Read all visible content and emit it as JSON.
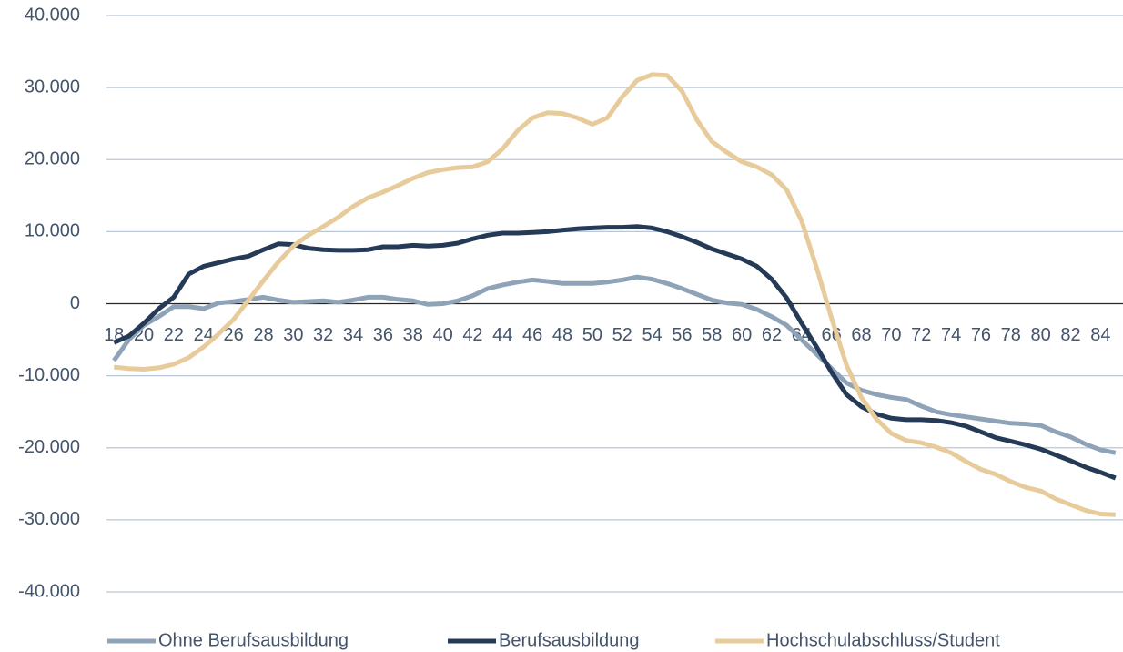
{
  "chart_data": {
    "type": "line",
    "x": [
      18,
      19,
      20,
      21,
      22,
      23,
      24,
      25,
      26,
      27,
      28,
      29,
      30,
      31,
      32,
      33,
      34,
      35,
      36,
      37,
      38,
      39,
      40,
      41,
      42,
      43,
      44,
      45,
      46,
      47,
      48,
      49,
      50,
      51,
      52,
      53,
      54,
      55,
      56,
      57,
      58,
      59,
      60,
      61,
      62,
      63,
      64,
      65,
      66,
      67,
      68,
      69,
      70,
      71,
      72,
      73,
      74,
      75,
      76,
      77,
      78,
      79,
      80,
      81,
      82,
      83,
      84,
      85
    ],
    "xlim": [
      17.5,
      85.5
    ],
    "xticks": [
      18,
      20,
      22,
      24,
      26,
      28,
      30,
      32,
      34,
      36,
      38,
      40,
      42,
      44,
      46,
      48,
      50,
      52,
      54,
      56,
      58,
      60,
      62,
      64,
      66,
      68,
      70,
      72,
      74,
      76,
      78,
      80,
      82,
      84
    ],
    "ylim": [
      -40000,
      40000
    ],
    "yticks": [
      {
        "value": -40000,
        "label": "-40.000"
      },
      {
        "value": -30000,
        "label": "-30.000"
      },
      {
        "value": -20000,
        "label": "-20.000"
      },
      {
        "value": -10000,
        "label": "-10.000"
      },
      0,
      {
        "value": 10000,
        "label": "10.000"
      },
      {
        "value": 20000,
        "label": "20.000"
      },
      {
        "value": 30000,
        "label": "30.000"
      },
      {
        "value": 40000,
        "label": "40.000"
      }
    ],
    "grid": true,
    "legend": "bottom",
    "series": [
      {
        "name": "Ohne Berufsausbildung",
        "color": "#8fa3b8",
        "values": [
          -7900,
          -5000,
          -3000,
          -1800,
          -400,
          -400,
          -700,
          100,
          300,
          600,
          900,
          500,
          200,
          300,
          400,
          200,
          500,
          900,
          900,
          600,
          400,
          -100,
          0,
          400,
          1100,
          2100,
          2600,
          3000,
          3300,
          3100,
          2800,
          2800,
          2800,
          3000,
          3300,
          3700,
          3400,
          2800,
          2100,
          1300,
          500,
          100,
          -100,
          -800,
          -1800,
          -3000,
          -5000,
          -7000,
          -9000,
          -11000,
          -12000,
          -12600,
          -13000,
          -13300,
          -14200,
          -15000,
          -15400,
          -15700,
          -16000,
          -16300,
          -16600,
          -16700,
          -16900,
          -17800,
          -18500,
          -19500,
          -20300,
          -20700
        ]
      },
      {
        "name": "Berufsausbildung",
        "color": "#243a57",
        "values": [
          -5400,
          -4500,
          -2700,
          -700,
          900,
          4100,
          5200,
          5700,
          6200,
          6600,
          7500,
          8300,
          8200,
          7700,
          7500,
          7400,
          7400,
          7500,
          7900,
          7900,
          8100,
          8000,
          8100,
          8400,
          9000,
          9500,
          9800,
          9800,
          9900,
          10000,
          10200,
          10400,
          10500,
          10600,
          10600,
          10700,
          10500,
          10000,
          9300,
          8500,
          7600,
          6900,
          6200,
          5200,
          3400,
          800,
          -2700,
          -6000,
          -9500,
          -12600,
          -14300,
          -15300,
          -15900,
          -16100,
          -16100,
          -16200,
          -16500,
          -17000,
          -17800,
          -18600,
          -19100,
          -19600,
          -20200,
          -21000,
          -21800,
          -22700,
          -23400,
          -24200
        ]
      },
      {
        "name": "Hochschulabschluss/Student",
        "color": "#e8cb9b",
        "values": [
          -8800,
          -9000,
          -9100,
          -8900,
          -8400,
          -7500,
          -6000,
          -4200,
          -2200,
          500,
          3200,
          5800,
          8000,
          9500,
          10700,
          12000,
          13500,
          14700,
          15500,
          16400,
          17400,
          18200,
          18600,
          18900,
          19000,
          19700,
          21500,
          24000,
          25800,
          26500,
          26400,
          25800,
          24900,
          25800,
          28700,
          31000,
          31800,
          31700,
          29500,
          25500,
          22500,
          21000,
          19700,
          19000,
          17900,
          15800,
          11500,
          5000,
          -2000,
          -8500,
          -13000,
          -16000,
          -18000,
          -19000,
          -19300,
          -19900,
          -20700,
          -21900,
          -23000,
          -23700,
          -24700,
          -25500,
          -26000,
          -27100,
          -27900,
          -28700,
          -29200,
          -29300
        ]
      }
    ]
  }
}
